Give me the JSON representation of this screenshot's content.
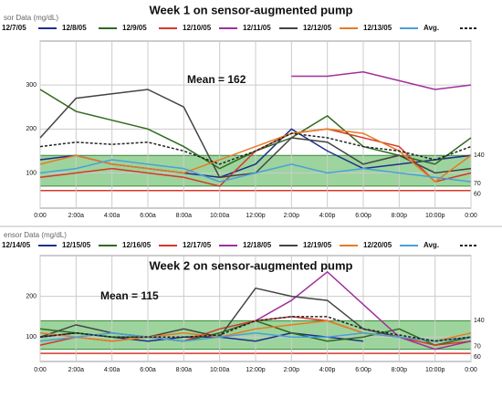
{
  "chart_data": [
    {
      "type": "line",
      "title": "Week 1 on sensor-augmented pump",
      "header": "sor Data (mg/dL)",
      "annotation": "Mean = 162",
      "x": [
        0,
        2,
        4,
        6,
        8,
        10,
        12,
        14,
        16,
        18,
        20,
        22,
        24
      ],
      "xlim": [
        0,
        24
      ],
      "xticks": [
        {
          "value": 0,
          "label": "0:00"
        },
        {
          "value": 2,
          "label": "2:00a"
        },
        {
          "value": 4,
          "label": "4:00a"
        },
        {
          "value": 6,
          "label": "6:00a"
        },
        {
          "value": 8,
          "label": "8:00a"
        },
        {
          "value": 10,
          "label": "10:00a"
        },
        {
          "value": 12,
          "label": "12:00p"
        },
        {
          "value": 14,
          "label": "2:00p"
        },
        {
          "value": 16,
          "label": "4:00p"
        },
        {
          "value": 18,
          "label": "6:00p"
        },
        {
          "value": 20,
          "label": "8:00p"
        },
        {
          "value": 22,
          "label": "10:00p"
        },
        {
          "value": 24,
          "label": "0:00"
        }
      ],
      "ylim": [
        20,
        400
      ],
      "yticks": [
        100,
        200,
        300
      ],
      "grid": true,
      "band": {
        "low": 70,
        "high": 140,
        "color": "#5cb85c"
      },
      "limit_line": 60,
      "series": [
        {
          "name": "12/7/05",
          "color": "#1f2f8a",
          "values": [
            130,
            140,
            120,
            110,
            100,
            90,
            120,
            200,
            150,
            110,
            120,
            130,
            140
          ]
        },
        {
          "name": "12/8/05",
          "color": "#2e6b1e",
          "values": [
            290,
            240,
            220,
            200,
            160,
            110,
            150,
            180,
            230,
            160,
            140,
            120,
            180
          ]
        },
        {
          "name": "12/9/05",
          "color": "#d6382a",
          "values": [
            90,
            100,
            110,
            100,
            90,
            70,
            150,
            190,
            200,
            180,
            160,
            80,
            100
          ]
        },
        {
          "name": "12/10/05",
          "color": "#a0309a",
          "values": [
            null,
            null,
            null,
            null,
            null,
            null,
            null,
            320,
            320,
            330,
            310,
            290,
            300
          ]
        },
        {
          "name": "12/11/05",
          "color": "#444444",
          "values": [
            180,
            270,
            280,
            290,
            250,
            90,
            100,
            180,
            170,
            120,
            140,
            100,
            110
          ]
        },
        {
          "name": "12/12/05",
          "color": "#e87a24",
          "values": [
            120,
            140,
            120,
            110,
            100,
            130,
            160,
            190,
            200,
            190,
            150,
            80,
            140
          ]
        },
        {
          "name": "12/13/05",
          "color": "#4aa0d8",
          "values": [
            100,
            110,
            130,
            120,
            110,
            80,
            100,
            120,
            100,
            110,
            100,
            90,
            80
          ]
        },
        {
          "name": "Avg.",
          "color": "#222222",
          "dash": true,
          "values": [
            160,
            170,
            165,
            170,
            150,
            120,
            150,
            190,
            180,
            160,
            150,
            130,
            160
          ]
        }
      ]
    },
    {
      "type": "line",
      "title": "Week 2 on sensor-augmented pump",
      "header": "ensor Data (mg/dL)",
      "annotation": "Mean = 115",
      "x": [
        0,
        2,
        4,
        6,
        8,
        10,
        12,
        14,
        16,
        18,
        20,
        22,
        24
      ],
      "xlim": [
        0,
        24
      ],
      "xticks": [
        {
          "value": 0,
          "label": "0:00"
        },
        {
          "value": 2,
          "label": "2:00a"
        },
        {
          "value": 4,
          "label": "4:00a"
        },
        {
          "value": 6,
          "label": "6:00a"
        },
        {
          "value": 8,
          "label": "8:00a"
        },
        {
          "value": 10,
          "label": "10:00a"
        },
        {
          "value": 12,
          "label": "12:00p"
        },
        {
          "value": 14,
          "label": "2:00p"
        },
        {
          "value": 16,
          "label": "4:00p"
        },
        {
          "value": 18,
          "label": "6:00p"
        },
        {
          "value": 20,
          "label": "8:00p"
        },
        {
          "value": 22,
          "label": "10:00p"
        },
        {
          "value": 24,
          "label": "0:00"
        }
      ],
      "ylim": [
        40,
        300
      ],
      "yticks": [
        100,
        200
      ],
      "grid": true,
      "band": {
        "low": 70,
        "high": 140,
        "color": "#5cb85c"
      },
      "limit_line": 60,
      "series": [
        {
          "name": "12/14/05",
          "color": "#1f2f8a",
          "values": [
            100,
            110,
            100,
            90,
            100,
            100,
            90,
            110,
            100,
            90,
            null,
            null,
            null
          ]
        },
        {
          "name": "12/15/05",
          "color": "#2e6b1e",
          "values": [
            120,
            110,
            100,
            100,
            90,
            110,
            140,
            110,
            90,
            100,
            120,
            80,
            100
          ]
        },
        {
          "name": "12/16/05",
          "color": "#d6382a",
          "values": [
            80,
            100,
            90,
            100,
            90,
            120,
            140,
            150,
            140,
            110,
            100,
            80,
            90
          ]
        },
        {
          "name": "12/17/05",
          "color": "#a0309a",
          "values": [
            null,
            null,
            null,
            null,
            null,
            null,
            140,
            190,
            260,
            180,
            100,
            70,
            90
          ]
        },
        {
          "name": "12/18/05",
          "color": "#444444",
          "values": [
            100,
            130,
            110,
            100,
            120,
            100,
            220,
            200,
            190,
            120,
            100,
            90,
            100
          ]
        },
        {
          "name": "12/19/05",
          "color": "#e87a24",
          "values": [
            110,
            100,
            90,
            100,
            110,
            100,
            120,
            130,
            140,
            110,
            100,
            90,
            110
          ]
        },
        {
          "name": "12/20/05",
          "color": "#4aa0d8",
          "values": [
            90,
            100,
            110,
            100,
            90,
            100,
            110,
            100,
            100,
            110,
            100,
            90,
            100
          ]
        },
        {
          "name": "Avg.",
          "color": "#222222",
          "dash": true,
          "values": [
            100,
            110,
            100,
            100,
            100,
            105,
            140,
            150,
            150,
            120,
            105,
            90,
            100
          ]
        }
      ]
    }
  ]
}
